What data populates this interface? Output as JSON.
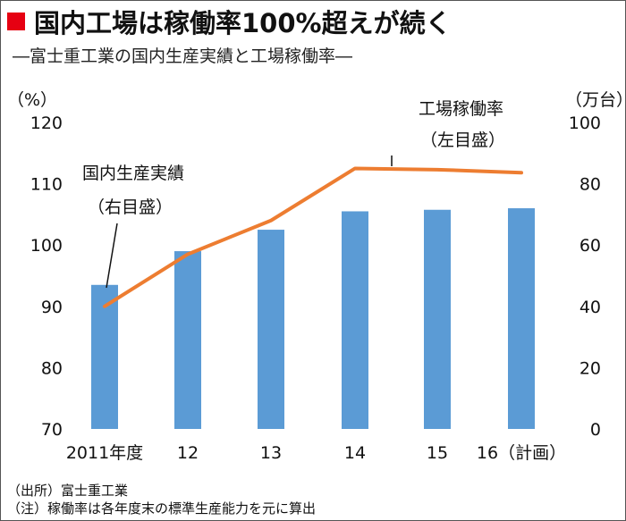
{
  "header": {
    "title": "国内工場は稼働率100%超えが続く",
    "subtitle": "―富士重工業の国内生産実績と工場稼働率―",
    "accent_color": "#e60012"
  },
  "chart_data": {
    "type": "bar+line",
    "categories": [
      "2011年度",
      "12",
      "13",
      "14",
      "15",
      "16（計画）"
    ],
    "left_axis": {
      "unit_label": "（%）",
      "ylim": [
        70,
        120
      ],
      "ticks": [
        70,
        80,
        90,
        100,
        110,
        120
      ]
    },
    "right_axis": {
      "unit_label": "（万台）",
      "ylim": [
        0,
        100
      ],
      "ticks": [
        0,
        20,
        40,
        60,
        80,
        100
      ]
    },
    "series": [
      {
        "name": "国内生産実績",
        "axis_note": "（右目盛）",
        "type": "bar",
        "axis": "right",
        "values": [
          47,
          58,
          65,
          71,
          71.5,
          72
        ],
        "color": "#5b9bd5"
      },
      {
        "name": "工場稼働率",
        "axis_note": "（左目盛）",
        "type": "line",
        "axis": "left",
        "values": [
          90,
          98.5,
          104,
          112.5,
          112.3,
          111.8
        ],
        "color": "#ed7d31"
      }
    ],
    "grid": false
  },
  "footer": {
    "source": "（出所）富士重工業",
    "note": "（注）稼働率は各年度末の標準生産能力を元に算出"
  }
}
